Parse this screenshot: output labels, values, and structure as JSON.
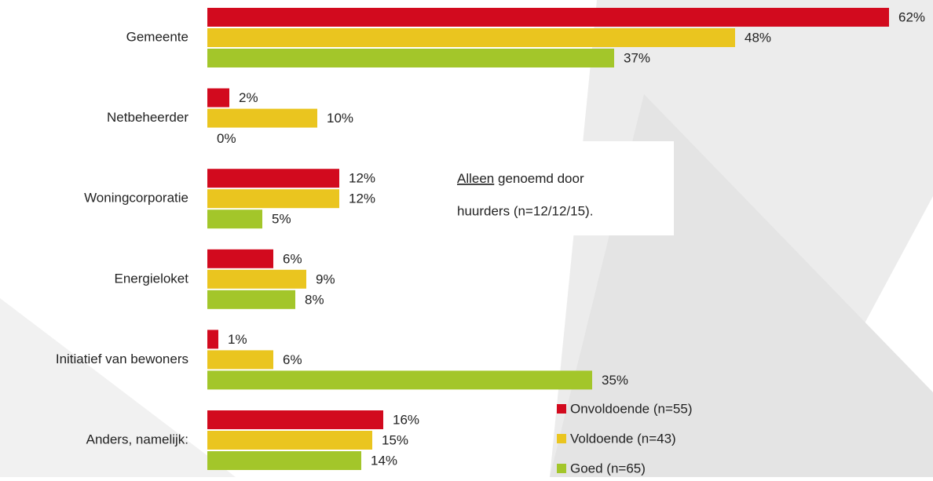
{
  "chart_data": {
    "type": "barh",
    "categories": [
      "Gemeente",
      "Netbeheerder",
      "Woningcorporatie",
      "Energieloket",
      "Initiatief van bewoners",
      "Anders, namelijk:"
    ],
    "series": [
      {
        "name": "Onvoldoende (n=55)",
        "color": "#d20a1e",
        "values": [
          62,
          2,
          12,
          6,
          1,
          16
        ],
        "value_labels": [
          "62%",
          "2%",
          "12%",
          "6%",
          "1%",
          "16%"
        ]
      },
      {
        "name": "Voldoende (n=43)",
        "color": "#eac51f",
        "values": [
          48,
          10,
          12,
          9,
          6,
          15
        ],
        "value_labels": [
          "48%",
          "10%",
          "12%",
          "9%",
          "6%",
          "15%"
        ]
      },
      {
        "name": "Goed (n=65)",
        "color": "#a3c62a",
        "values": [
          37,
          0,
          5,
          8,
          35,
          14
        ],
        "value_labels": [
          "37%",
          "0%",
          "5%",
          "8%",
          "35%",
          "14%"
        ]
      }
    ],
    "xlim": [
      0,
      65
    ],
    "annotation": [
      [
        "Alleen",
        " genoemd door"
      ],
      [
        "huurders (n=12/12/15)."
      ]
    ]
  }
}
